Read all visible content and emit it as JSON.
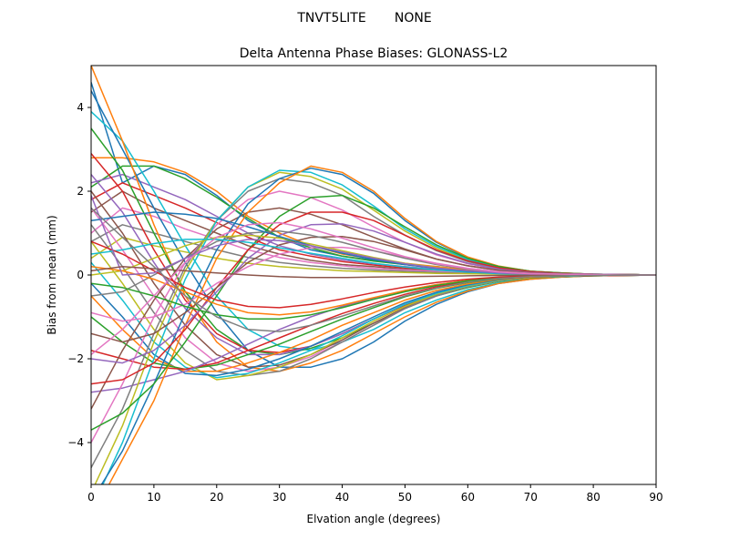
{
  "suptitle": "TNVT5LITE       NONE",
  "chart_data": {
    "type": "line",
    "title": "Delta Antenna Phase Biases: GLONASS-L2",
    "xlabel": "Elvation angle (degrees)",
    "ylabel": "Bias from mean (mm)",
    "xlim": [
      0,
      90
    ],
    "ylim": [
      -5,
      5
    ],
    "xticks": [
      0,
      10,
      20,
      30,
      40,
      50,
      60,
      70,
      80,
      90
    ],
    "xtick_labels": [
      "0",
      "10",
      "20",
      "30",
      "40",
      "50",
      "60",
      "70",
      "80",
      "90"
    ],
    "yticks": [
      -4,
      -2,
      0,
      2,
      4
    ],
    "ytick_labels": [
      "−4",
      "−2",
      "0",
      "2",
      "4"
    ],
    "grid": false,
    "legend": "none",
    "color_cycle": [
      "#1f77b4",
      "#ff7f0e",
      "#2ca02c",
      "#d62728",
      "#9467bd",
      "#8c564b",
      "#e377c2",
      "#7f7f7f",
      "#bcbd22",
      "#17becf"
    ],
    "x": [
      0,
      5,
      10,
      15,
      20,
      25,
      30,
      35,
      40,
      45,
      50,
      55,
      60,
      65,
      70,
      75,
      80,
      85,
      90
    ],
    "series": [
      {
        "values": [
          4.6,
          2.2,
          2.6,
          2.4,
          1.9,
          1.3,
          0.9,
          0.6,
          0.45,
          0.35,
          0.25,
          0.2,
          0.12,
          0.07,
          0.04,
          0.03,
          0.02,
          0.01,
          0
        ]
      },
      {
        "values": [
          2.8,
          2.8,
          2.7,
          2.45,
          2.0,
          1.4,
          1.0,
          0.7,
          0.5,
          0.38,
          0.28,
          0.2,
          0.12,
          0.08,
          0.04,
          0.03,
          0.02,
          0.01,
          0
        ]
      },
      {
        "values": [
          2.1,
          2.6,
          2.6,
          2.3,
          1.85,
          1.35,
          0.9,
          0.65,
          0.45,
          0.33,
          0.25,
          0.17,
          0.1,
          0.06,
          0.04,
          0.03,
          0.02,
          0.01,
          0
        ]
      },
      {
        "values": [
          1.8,
          2.2,
          1.9,
          1.6,
          1.25,
          0.9,
          0.6,
          0.45,
          0.32,
          0.24,
          0.17,
          0.12,
          0.08,
          0.05,
          0.03,
          0.02,
          0.01,
          0.01,
          0
        ]
      },
      {
        "values": [
          2.2,
          2.4,
          2.1,
          1.8,
          1.4,
          1.0,
          0.7,
          0.5,
          0.36,
          0.27,
          0.2,
          0.14,
          0.09,
          0.05,
          0.03,
          0.02,
          0.02,
          0.01,
          0
        ]
      },
      {
        "values": [
          1.5,
          2.0,
          1.6,
          1.3,
          1.0,
          0.7,
          0.5,
          0.35,
          0.25,
          0.2,
          0.14,
          0.1,
          0.07,
          0.04,
          0.03,
          0.02,
          0.01,
          0.01,
          0
        ]
      },
      {
        "values": [
          1.0,
          1.6,
          1.4,
          1.1,
          0.85,
          0.6,
          0.42,
          0.3,
          0.22,
          0.16,
          0.12,
          0.09,
          0.06,
          0.04,
          0.02,
          0.02,
          0.01,
          0.0,
          0
        ]
      },
      {
        "values": [
          0.8,
          1.2,
          1.0,
          0.8,
          0.6,
          0.42,
          0.3,
          0.22,
          0.16,
          0.12,
          0.09,
          0.06,
          0.04,
          0.03,
          0.02,
          0.01,
          0.01,
          0.0,
          0
        ]
      },
      {
        "values": [
          0.4,
          0.9,
          0.7,
          0.55,
          0.4,
          0.28,
          0.2,
          0.15,
          0.1,
          0.08,
          0.06,
          0.04,
          0.03,
          0.02,
          0.01,
          0.01,
          0.0,
          0.0,
          0
        ]
      },
      {
        "values": [
          3.9,
          3.2,
          2.0,
          0.7,
          -0.5,
          -1.3,
          -1.7,
          -1.8,
          -1.6,
          -1.3,
          -0.9,
          -0.6,
          -0.35,
          -0.18,
          -0.08,
          -0.04,
          -0.02,
          -0.01,
          0
        ]
      },
      {
        "values": [
          4.4,
          3.0,
          1.6,
          0.3,
          -0.9,
          -1.8,
          -2.2,
          -2.2,
          -2.0,
          -1.6,
          -1.1,
          -0.7,
          -0.4,
          -0.2,
          -0.1,
          -0.05,
          -0.02,
          -0.01,
          0
        ]
      },
      {
        "values": [
          5.0,
          3.2,
          1.2,
          -0.5,
          -1.6,
          -2.2,
          -2.3,
          -2.1,
          -1.8,
          -1.4,
          -1.0,
          -0.65,
          -0.38,
          -0.2,
          -0.1,
          -0.05,
          -0.02,
          -0.01,
          0
        ]
      },
      {
        "values": [
          3.5,
          2.5,
          1.0,
          -0.4,
          -1.3,
          -1.8,
          -1.9,
          -1.75,
          -1.5,
          -1.15,
          -0.8,
          -0.5,
          -0.3,
          -0.15,
          -0.07,
          -0.04,
          -0.02,
          -0.01,
          0
        ]
      },
      {
        "values": [
          2.9,
          2.0,
          0.6,
          -0.6,
          -1.4,
          -1.8,
          -1.85,
          -1.7,
          -1.4,
          -1.05,
          -0.72,
          -0.45,
          -0.26,
          -0.13,
          -0.06,
          -0.03,
          -0.02,
          -0.01,
          0
        ]
      },
      {
        "values": [
          2.4,
          1.5,
          0.3,
          -0.8,
          -1.5,
          -1.9,
          -1.9,
          -1.7,
          -1.4,
          -1.05,
          -0.7,
          -0.42,
          -0.24,
          -0.12,
          -0.06,
          -0.03,
          -0.01,
          0.0,
          0
        ]
      },
      {
        "values": [
          2.0,
          1.0,
          -0.2,
          -1.2,
          -1.9,
          -2.2,
          -2.15,
          -1.9,
          -1.55,
          -1.15,
          -0.78,
          -0.48,
          -0.27,
          -0.13,
          -0.06,
          -0.03,
          -0.01,
          0.0,
          0
        ]
      },
      {
        "values": [
          1.6,
          0.6,
          -0.5,
          -1.5,
          -2.1,
          -2.3,
          -2.2,
          -1.95,
          -1.6,
          -1.2,
          -0.8,
          -0.5,
          -0.28,
          -0.14,
          -0.06,
          -0.03,
          -0.01,
          0.0,
          0
        ]
      },
      {
        "values": [
          1.2,
          0.2,
          -0.9,
          -1.8,
          -2.3,
          -2.4,
          -2.3,
          -2.0,
          -1.6,
          -1.2,
          -0.8,
          -0.5,
          -0.28,
          -0.14,
          -0.06,
          -0.03,
          -0.01,
          0.0,
          0
        ]
      },
      {
        "values": [
          0.8,
          -0.2,
          -1.3,
          -2.1,
          -2.5,
          -2.4,
          -2.2,
          -1.9,
          -1.5,
          -1.1,
          -0.75,
          -0.46,
          -0.26,
          -0.13,
          -0.06,
          -0.03,
          -0.01,
          0.0,
          0
        ]
      },
      {
        "values": [
          0.3,
          -0.6,
          -1.6,
          -2.2,
          -2.45,
          -2.35,
          -2.1,
          -1.8,
          -1.45,
          -1.05,
          -0.7,
          -0.44,
          -0.25,
          -0.12,
          -0.05,
          -0.03,
          -0.01,
          0.0,
          0
        ]
      },
      {
        "values": [
          -0.2,
          -1.0,
          -1.9,
          -2.35,
          -2.4,
          -2.25,
          -2.0,
          -1.7,
          -1.35,
          -1.0,
          -0.66,
          -0.41,
          -0.23,
          -0.11,
          -0.05,
          -0.02,
          -0.01,
          0.0,
          0
        ]
      },
      {
        "values": [
          -0.5,
          -1.3,
          -2.0,
          -2.3,
          -2.3,
          -2.1,
          -1.85,
          -1.55,
          -1.2,
          -0.9,
          -0.6,
          -0.37,
          -0.21,
          -0.1,
          -0.05,
          -0.02,
          -0.01,
          0.0,
          0
        ]
      },
      {
        "values": [
          -1.0,
          -1.6,
          -2.1,
          -2.25,
          -2.15,
          -1.9,
          -1.65,
          -1.35,
          -1.05,
          -0.78,
          -0.52,
          -0.32,
          -0.18,
          -0.09,
          -0.04,
          -0.02,
          -0.01,
          0.0,
          0
        ]
      },
      {
        "values": [
          -1.8,
          -2.0,
          -2.2,
          -2.25,
          -2.1,
          -1.8,
          -1.5,
          -1.2,
          -0.92,
          -0.68,
          -0.46,
          -0.28,
          -0.16,
          -0.08,
          -0.04,
          -0.02,
          -0.01,
          0.0,
          0
        ]
      },
      {
        "values": [
          -2.8,
          -2.7,
          -2.5,
          -2.3,
          -2.0,
          -1.65,
          -1.3,
          -1.0,
          -0.75,
          -0.55,
          -0.37,
          -0.23,
          -0.13,
          -0.06,
          -0.03,
          -0.02,
          -0.01,
          0.0,
          0
        ]
      },
      {
        "values": [
          -3.2,
          -1.8,
          -0.6,
          0.4,
          1.1,
          1.5,
          1.6,
          1.45,
          1.2,
          0.9,
          0.62,
          0.38,
          0.22,
          0.11,
          0.05,
          0.03,
          0.01,
          0.0,
          0
        ]
      },
      {
        "values": [
          -4.0,
          -2.6,
          -1.0,
          0.3,
          1.2,
          1.8,
          2.0,
          1.85,
          1.55,
          1.15,
          0.78,
          0.48,
          0.27,
          0.13,
          0.06,
          0.03,
          0.01,
          0.0,
          0
        ]
      },
      {
        "values": [
          -4.6,
          -3.2,
          -1.4,
          0.2,
          1.3,
          2.0,
          2.3,
          2.2,
          1.9,
          1.4,
          0.95,
          0.58,
          0.32,
          0.15,
          0.07,
          0.03,
          0.02,
          0.01,
          0
        ]
      },
      {
        "values": [
          -5.2,
          -3.6,
          -1.6,
          0.1,
          1.3,
          2.1,
          2.45,
          2.35,
          2.05,
          1.55,
          1.05,
          0.64,
          0.35,
          0.17,
          0.08,
          0.04,
          0.02,
          0.01,
          0
        ]
      },
      {
        "values": [
          -5.6,
          -4.0,
          -2.0,
          -0.1,
          1.3,
          2.1,
          2.5,
          2.45,
          2.15,
          1.65,
          1.1,
          0.68,
          0.37,
          0.18,
          0.08,
          0.04,
          0.02,
          0.01,
          0
        ]
      },
      {
        "values": [
          -5.4,
          -4.2,
          -2.6,
          -0.9,
          0.6,
          1.7,
          2.3,
          2.55,
          2.4,
          1.95,
          1.3,
          0.78,
          0.42,
          0.2,
          0.09,
          0.05,
          0.02,
          0.01,
          0
        ]
      },
      {
        "values": [
          -5.8,
          -4.4,
          -3.0,
          -1.2,
          0.4,
          1.5,
          2.2,
          2.6,
          2.45,
          2.0,
          1.35,
          0.8,
          0.43,
          0.21,
          0.09,
          0.05,
          0.02,
          0.01,
          0
        ]
      },
      {
        "values": [
          -3.7,
          -3.3,
          -2.6,
          -1.6,
          -0.5,
          0.6,
          1.4,
          1.85,
          1.9,
          1.6,
          1.15,
          0.72,
          0.4,
          0.2,
          0.09,
          0.05,
          0.02,
          0.01,
          0
        ]
      },
      {
        "values": [
          -2.6,
          -2.5,
          -2.1,
          -1.3,
          -0.3,
          0.6,
          1.2,
          1.5,
          1.5,
          1.3,
          0.95,
          0.6,
          0.34,
          0.17,
          0.08,
          0.04,
          0.02,
          0.01,
          0
        ]
      },
      {
        "values": [
          -2.0,
          -2.1,
          -1.8,
          -1.2,
          -0.4,
          0.4,
          0.95,
          1.2,
          1.22,
          1.05,
          0.78,
          0.5,
          0.28,
          0.14,
          0.06,
          0.03,
          0.02,
          0.01,
          0
        ]
      },
      {
        "values": [
          -1.4,
          -1.6,
          -1.4,
          -0.9,
          -0.3,
          0.3,
          0.72,
          0.9,
          0.92,
          0.8,
          0.6,
          0.38,
          0.22,
          0.11,
          0.05,
          0.03,
          0.01,
          0.0,
          0
        ]
      },
      {
        "values": [
          -0.9,
          -1.1,
          -1.0,
          -0.7,
          -0.2,
          0.2,
          0.5,
          0.65,
          0.66,
          0.58,
          0.43,
          0.28,
          0.16,
          0.08,
          0.04,
          0.02,
          0.01,
          0.0,
          0
        ]
      },
      {
        "values": [
          -0.5,
          -0.4,
          0.0,
          0.4,
          0.8,
          1.0,
          1.05,
          0.95,
          0.78,
          0.58,
          0.4,
          0.25,
          0.14,
          0.07,
          0.03,
          0.02,
          0.01,
          0.0,
          0
        ]
      },
      {
        "values": [
          0.0,
          0.1,
          0.4,
          0.7,
          0.9,
          0.95,
          0.88,
          0.74,
          0.58,
          0.42,
          0.28,
          0.18,
          0.1,
          0.05,
          0.02,
          0.01,
          0.01,
          0.0,
          0
        ]
      },
      {
        "values": [
          0.5,
          0.6,
          0.75,
          0.85,
          0.85,
          0.78,
          0.65,
          0.52,
          0.4,
          0.28,
          0.19,
          0.12,
          0.07,
          0.03,
          0.02,
          0.01,
          0.0,
          0.0,
          0
        ]
      },
      {
        "values": [
          1.3,
          1.4,
          1.5,
          1.45,
          1.35,
          1.15,
          0.92,
          0.7,
          0.52,
          0.37,
          0.25,
          0.16,
          0.09,
          0.05,
          0.02,
          0.01,
          0.01,
          0.0,
          0
        ]
      },
      {
        "values": [
          0.2,
          0.1,
          -0.1,
          -0.4,
          -0.7,
          -0.9,
          -0.95,
          -0.88,
          -0.72,
          -0.54,
          -0.37,
          -0.23,
          -0.13,
          -0.06,
          -0.03,
          -0.01,
          -0.01,
          0.0,
          0
        ]
      },
      {
        "values": [
          -0.2,
          -0.3,
          -0.5,
          -0.75,
          -0.95,
          -1.05,
          -1.05,
          -0.95,
          -0.78,
          -0.58,
          -0.4,
          -0.25,
          -0.14,
          -0.07,
          -0.03,
          -0.02,
          -0.01,
          0.0,
          0
        ]
      },
      {
        "values": [
          0.8,
          0.5,
          0.1,
          -0.3,
          -0.6,
          -0.75,
          -0.78,
          -0.7,
          -0.57,
          -0.42,
          -0.29,
          -0.18,
          -0.1,
          -0.05,
          -0.02,
          -0.01,
          0.0,
          0.0,
          0
        ]
      },
      {
        "values": [
          1.9,
          0.0,
          0.05,
          0.4,
          0.7,
          0.85,
          0.82,
          0.7,
          0.55,
          0.4,
          0.27,
          0.17,
          0.1,
          0.05,
          0.02,
          0.01,
          0.01,
          0.0,
          0
        ]
      },
      {
        "values": [
          0.1,
          0.2,
          0.15,
          0.1,
          0.05,
          0.0,
          -0.04,
          -0.06,
          -0.06,
          -0.05,
          -0.04,
          -0.03,
          -0.02,
          -0.01,
          -0.01,
          0.0,
          0.0,
          0.0,
          0
        ]
      },
      {
        "values": [
          -1.9,
          -1.3,
          -0.5,
          0.3,
          0.9,
          1.2,
          1.25,
          1.1,
          0.88,
          0.65,
          0.44,
          0.27,
          0.15,
          0.07,
          0.03,
          0.02,
          0.01,
          0.0,
          0
        ]
      },
      {
        "values": [
          1.6,
          0.9,
          0.2,
          -0.5,
          -1.0,
          -1.3,
          -1.35,
          -1.2,
          -0.98,
          -0.74,
          -0.5,
          -0.31,
          -0.17,
          -0.08,
          -0.04,
          -0.02,
          -0.01,
          0.0,
          0
        ]
      }
    ]
  }
}
